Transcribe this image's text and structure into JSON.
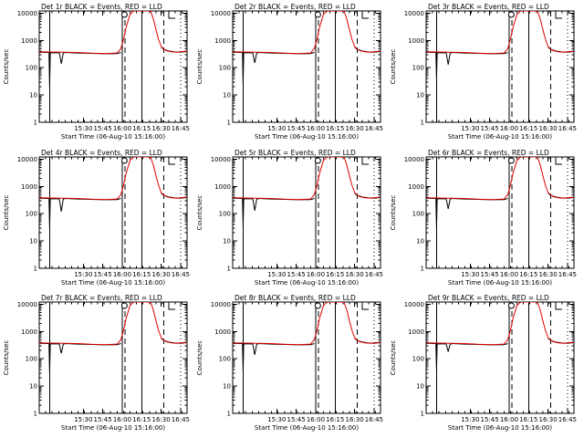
{
  "chart_data": {
    "type": "line",
    "shared": {
      "xlabel": "Start Time (06-Aug-10 15:16:00)",
      "ylabel": "Counts/sec",
      "x_ticks_min": [
        14,
        29,
        44,
        59,
        74,
        89
      ],
      "x_tick_labels": [
        "15:30",
        "15:45",
        "16:00",
        "16:15",
        "16:30",
        "16:45"
      ],
      "xlim_min": [
        0,
        94
      ],
      "ylog": true,
      "ylim": [
        1,
        12000
      ],
      "y_ticks": [
        1,
        10,
        100,
        1000,
        10000
      ],
      "y_tick_labels": [
        "1",
        "10",
        "100",
        "1000",
        "10000"
      ],
      "series_colors": {
        "Events": "#000000",
        "LLD": "#e00000"
      },
      "vlines_min": {
        "solid": [
          -12,
          44,
          59
        ],
        "dashed": [
          44,
          74
        ],
        "dotted": [
          89
        ]
      },
      "lld_x_min": [
        0,
        10,
        20,
        30,
        40,
        43,
        45,
        47,
        50,
        53,
        56,
        59,
        62,
        64,
        66,
        68,
        70,
        72,
        74,
        76,
        78,
        82,
        86,
        90,
        94
      ],
      "lld_y": [
        370,
        360,
        340,
        330,
        345,
        500,
        1100,
        3000,
        9000,
        12000,
        12000,
        12000,
        12000,
        12000,
        11500,
        6000,
        2500,
        1100,
        600,
        480,
        420,
        380,
        370,
        390,
        400
      ],
      "events_base_x_min": [
        0,
        10,
        20,
        30,
        40,
        43
      ],
      "events_base_y": [
        360,
        345,
        335,
        325,
        330,
        360
      ],
      "events_tail_x_min": [
        74,
        76,
        80,
        84,
        88,
        92,
        94
      ],
      "events_tail_y": [
        560,
        470,
        410,
        385,
        370,
        380,
        390
      ]
    },
    "panels": [
      {
        "title": "Det 1r BLACK = Events, RED = LLD",
        "events_dip": [
          {
            "x": -12,
            "y": 20
          },
          {
            "x": -3,
            "y": 140
          }
        ]
      },
      {
        "title": "Det 2r BLACK = Events, RED = LLD",
        "events_dip": [
          {
            "x": -12,
            "y": 25
          },
          {
            "x": -3,
            "y": 150
          }
        ]
      },
      {
        "title": "Det 3r BLACK = Events, RED = LLD",
        "events_dip": [
          {
            "x": -12,
            "y": 40
          },
          {
            "x": -3,
            "y": 130
          }
        ]
      },
      {
        "title": "Det 4r BLACK = Events, RED = LLD",
        "events_dip": [
          {
            "x": -12,
            "y": 30
          },
          {
            "x": -3,
            "y": 120
          }
        ]
      },
      {
        "title": "Det 5r BLACK = Events, RED = LLD",
        "events_dip": [
          {
            "x": -12,
            "y": 35
          },
          {
            "x": -3,
            "y": 130
          }
        ]
      },
      {
        "title": "Det 6r BLACK = Events, RED = LLD",
        "events_dip": [
          {
            "x": -12,
            "y": 30
          },
          {
            "x": -3,
            "y": 150
          }
        ]
      },
      {
        "title": "Det 7r BLACK = Events, RED = LLD",
        "events_dip": [
          {
            "x": -12,
            "y": 30
          },
          {
            "x": -3,
            "y": 160
          }
        ]
      },
      {
        "title": "Det 8r BLACK = Events, RED = LLD",
        "events_dip": [
          {
            "x": -12,
            "y": 35
          },
          {
            "x": -3,
            "y": 140
          }
        ]
      },
      {
        "title": "Det 9r BLACK = Events, RED = LLD",
        "events_dip": [
          {
            "x": -12,
            "y": 40
          },
          {
            "x": -3,
            "y": 180
          }
        ]
      }
    ]
  }
}
